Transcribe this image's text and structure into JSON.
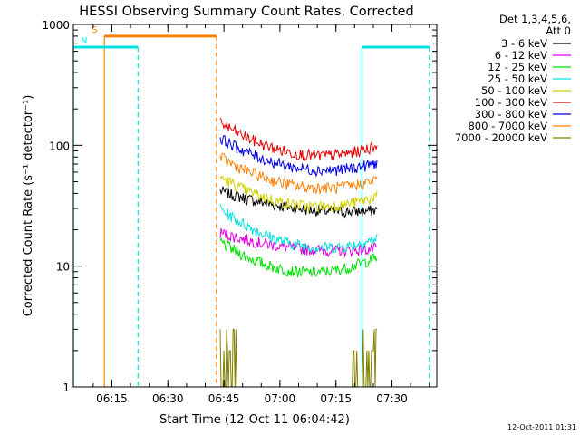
{
  "chart_data": {
    "type": "line",
    "title": "HESSI Observing Summary Count Rates, Corrected",
    "xlabel": "Start Time (12-Oct-11 06:04:42)",
    "ylabel": "Corrected Count Rate (s⁻¹ detector⁻¹)",
    "x_ticks": [
      "06:15",
      "06:30",
      "06:45",
      "07:00",
      "07:15",
      "07:30"
    ],
    "y_ticks": [
      "1",
      "10",
      "100",
      "1000"
    ],
    "y_scale": "log",
    "ylim": [
      1,
      1000
    ],
    "xlim": [
      "06:04:42",
      "07:42:00"
    ],
    "legend_header": [
      "Det 1,3,4,5,6,",
      "Att 0"
    ],
    "legend_position": "right",
    "timestamp": "12-Oct-2011 01:31",
    "series": [
      {
        "name": "3 - 6 keV",
        "color": "#000000",
        "start": "06:44",
        "end": "07:26",
        "y_start": 42,
        "y_mid": 30,
        "y_end": 29
      },
      {
        "name": "6 - 12 keV",
        "color": "#e000e0",
        "start": "06:44",
        "end": "07:26",
        "y_start": 19,
        "y_mid": 14,
        "y_end": 14
      },
      {
        "name": "12 - 25 keV",
        "color": "#00e000",
        "start": "06:44",
        "end": "07:26",
        "y_start": 16,
        "y_mid": 9,
        "y_end": 12
      },
      {
        "name": "25 - 50 keV",
        "color": "#00e0e0",
        "start": "06:44",
        "end": "07:26",
        "y_start": 30,
        "y_mid": 15,
        "y_end": 17
      },
      {
        "name": "50 - 100 keV",
        "color": "#d0d000",
        "start": "06:44",
        "end": "07:26",
        "y_start": 55,
        "y_mid": 32,
        "y_end": 38
      },
      {
        "name": "100 - 300 keV",
        "color": "#e00000",
        "start": "06:44",
        "end": "07:26",
        "y_start": 155,
        "y_mid": 85,
        "y_end": 100
      },
      {
        "name": "300 - 800 keV",
        "color": "#0000e0",
        "start": "06:44",
        "end": "07:26",
        "y_start": 115,
        "y_mid": 65,
        "y_end": 72
      },
      {
        "name": "800 - 7000 keV",
        "color": "#ff8000",
        "start": "06:44",
        "end": "07:26",
        "y_start": 80,
        "y_mid": 46,
        "y_end": 52
      },
      {
        "name": "7000 - 20000 keV",
        "color": "#808000",
        "start": "06:44",
        "end": "07:26",
        "y_start": 3,
        "y_mid": 1,
        "y_end": 2
      }
    ],
    "flags": [
      {
        "label": "S",
        "color": "#ff8000",
        "start": "06:13",
        "end": "06:43",
        "level": 800
      },
      {
        "label": "N",
        "color": "#00e0e0",
        "start": "06:04:42",
        "end": "06:22",
        "level": 650
      },
      {
        "label": "",
        "color": "#00e0e0",
        "start": "07:22",
        "end": "07:40",
        "level": 650
      }
    ]
  }
}
